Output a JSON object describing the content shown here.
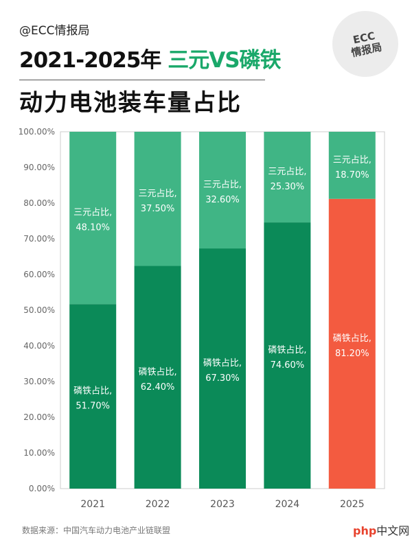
{
  "header": {
    "handle": "@ECC情报局",
    "title_prefix": "2021-2025年 ",
    "title_accent": "三元VS磷铁",
    "subtitle": "动力电池装车量占比",
    "logo_line1": "ECC",
    "logo_line2": "情报局"
  },
  "colors": {
    "lfp": "#0b8a58",
    "ncm": "#40b585",
    "lfp_2025": "#f35b40",
    "accent": "#1aa86a"
  },
  "chart_data": {
    "type": "bar",
    "stacked": true,
    "categories": [
      "2021",
      "2022",
      "2023",
      "2024",
      "2025"
    ],
    "series": [
      {
        "name": "磷铁占比",
        "values": [
          51.7,
          62.4,
          67.3,
          74.6,
          81.2
        ],
        "labels": [
          "51.70%",
          "62.40%",
          "67.30%",
          "74.60%",
          "81.20%"
        ]
      },
      {
        "name": "三元占比",
        "values": [
          48.1,
          37.5,
          32.6,
          25.3,
          18.7
        ],
        "labels": [
          "48.10%",
          "37.50%",
          "32.60%",
          "25.30%",
          "18.70%"
        ]
      }
    ],
    "yticks": [
      "0.00%",
      "10.00%",
      "20.00%",
      "30.00%",
      "40.00%",
      "50.00%",
      "60.00%",
      "70.00%",
      "80.00%",
      "90.00%",
      "100.00%"
    ],
    "ylim": [
      0,
      100
    ],
    "grid": false,
    "legend": "none"
  },
  "footer": {
    "source": "数据来源：中国汽车动力电池产业链联盟",
    "watermark_a": "php",
    "watermark_b": "中文网"
  }
}
